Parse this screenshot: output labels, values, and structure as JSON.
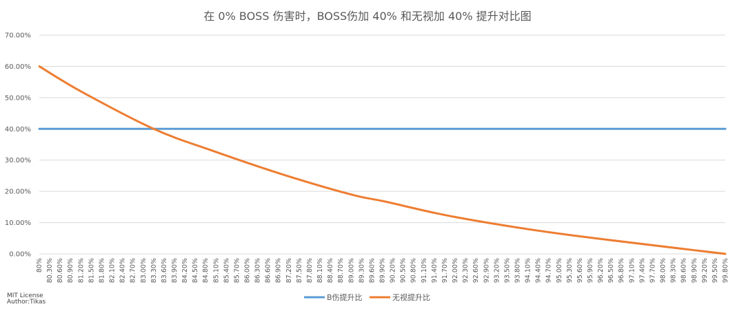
{
  "chart_data": {
    "type": "line",
    "title": "在 0% BOSS 伤害时，BOSS伤加 40% 和无视加 40% 提升对比图",
    "xlabel": "",
    "ylabel": "",
    "ylim": [
      0,
      0.7
    ],
    "y_ticks": [
      "0.00%",
      "10.00%",
      "20.00%",
      "30.00%",
      "40.00%",
      "50.00%",
      "60.00%",
      "70.00%"
    ],
    "x_tick_labels": [
      "80%",
      "80.30%",
      "80.60%",
      "80.90%",
      "81.20%",
      "81.50%",
      "81.80%",
      "82.10%",
      "82.40%",
      "82.70%",
      "83.00%",
      "83.30%",
      "83.60%",
      "83.90%",
      "84.20%",
      "84.50%",
      "84.80%",
      "85.10%",
      "85.40%",
      "85.70%",
      "86.00%",
      "86.30%",
      "86.60%",
      "86.90%",
      "87.20%",
      "87.50%",
      "87.80%",
      "88.10%",
      "88.40%",
      "88.70%",
      "89.00%",
      "89.30%",
      "89.60%",
      "89.90%",
      "90.20%",
      "90.50%",
      "90.80%",
      "91.10%",
      "91.40%",
      "91.70%",
      "92.00%",
      "92.30%",
      "92.60%",
      "92.90%",
      "93.20%",
      "93.50%",
      "93.80%",
      "94.10%",
      "94.40%",
      "94.70%",
      "95.00%",
      "95.30%",
      "95.60%",
      "95.90%",
      "96.20%",
      "96.50%",
      "96.80%",
      "97.10%",
      "97.40%",
      "97.70%",
      "98.00%",
      "98.30%",
      "98.60%",
      "98.90%",
      "99.20%",
      "99.50%",
      "99.80%"
    ],
    "x_range": [
      0.8,
      0.998
    ],
    "grid": true,
    "legend_position": "bottom",
    "series": [
      {
        "name": "B伤提升比",
        "color": "#5b9bd5",
        "x": [
          0.8,
          0.998
        ],
        "values": [
          0.4,
          0.4
        ]
      },
      {
        "name": "无视提升比",
        "color": "#ed7d31",
        "x": [
          0.8,
          0.812,
          0.833,
          0.85,
          0.87,
          0.89,
          0.9,
          0.92,
          0.95,
          0.998
        ],
        "values": [
          0.6,
          0.52,
          0.4,
          0.33,
          0.255,
          0.19,
          0.167,
          0.118,
          0.065,
          0.0
        ]
      }
    ]
  },
  "credits": {
    "line1": "MIT License",
    "line2": "Author:Tikas"
  }
}
